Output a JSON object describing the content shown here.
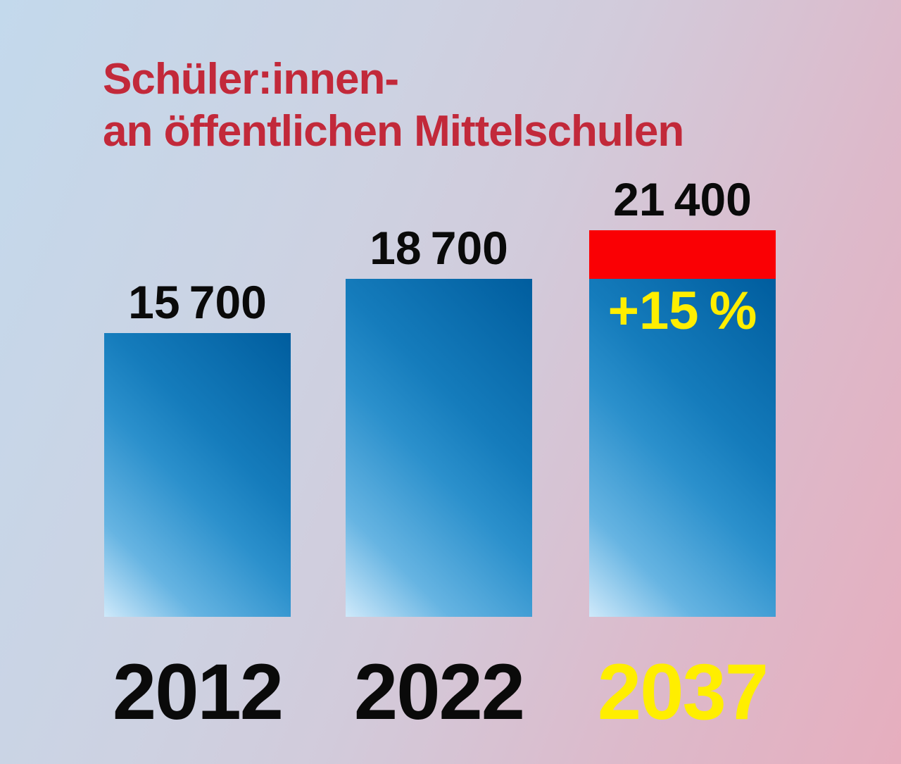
{
  "title": {
    "line1": "Schüler:innen-",
    "line2": "an öffentlichen Mittelschulen"
  },
  "colors": {
    "title_red": "#C2293A",
    "bar_blue_dark": "#005D9E",
    "bar_blue_light": "#CFE9FA",
    "increase_red": "#FA0004",
    "highlight_yellow": "#FFEE00",
    "label_black": "#0A0A0A",
    "background_blue": "#C3D9EC",
    "background_pink": "#E6AEBE"
  },
  "chart_data": {
    "type": "bar",
    "title": "Schüler:innen an öffentlichen Mittelschulen",
    "categories": [
      "2012",
      "2022",
      "2037"
    ],
    "values": [
      15700,
      18700,
      21400
    ],
    "ylim": [
      0,
      21400
    ],
    "grid": false,
    "legend": false,
    "bars": [
      {
        "year": "2012",
        "value": 15700,
        "label": "15 700",
        "base_value": 15700,
        "increase_value": 0,
        "projected": false
      },
      {
        "year": "2022",
        "value": 18700,
        "label": "18 700",
        "base_value": 18700,
        "increase_value": 0,
        "projected": false
      },
      {
        "year": "2037",
        "value": 21400,
        "label": "21 400",
        "base_value": 18700,
        "increase_value": 2700,
        "increase_label": "+15 %",
        "projected": true
      }
    ]
  }
}
